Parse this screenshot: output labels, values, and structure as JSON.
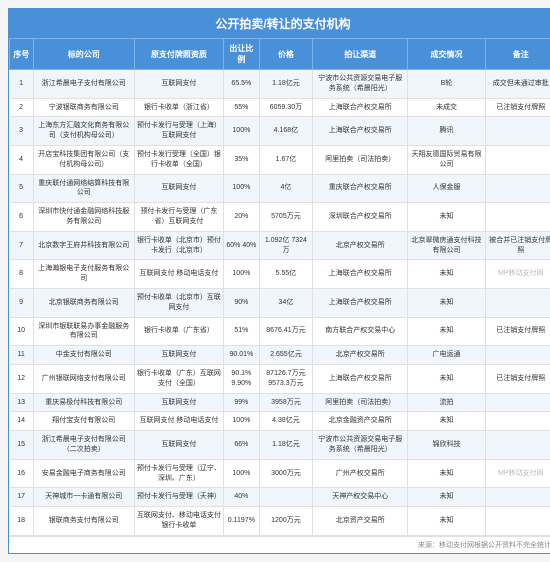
{
  "title": "公开拍卖/转让的支付机构",
  "headers": [
    "序号",
    "标的公司",
    "原支付牌照资质",
    "出让比例",
    "价格",
    "拍让渠道",
    "成交情况",
    "备注"
  ],
  "col_classes": [
    "c0",
    "c1",
    "c2",
    "c3",
    "c4",
    "c5",
    "c6",
    "c7"
  ],
  "rows": [
    {
      "n": "1",
      "c": "浙江希晨电子支付有限公司",
      "q": "互联网支付",
      "r": "65.5%",
      "p": "1.18亿元",
      "ch": "宁波市公共资源交易电子服务系统（希晨阳光）",
      "s": "B轮",
      "nt": "成交但未通过审批",
      "wm": ""
    },
    {
      "n": "2",
      "c": "宁波银联商务有限公司",
      "q": "银行卡收单（浙江省）",
      "r": "55%",
      "p": "6059.30万",
      "ch": "上海联合产权交易所",
      "s": "未成交",
      "nt": "已注销支付牌照",
      "wm": ""
    },
    {
      "n": "3",
      "c": "上海东方汇融文化商务有限公司（支付机构母公司）",
      "q": "预付卡发行与受理（上海）互联网支付",
      "r": "100%",
      "p": "4.168亿",
      "ch": "上海联合产权交易所",
      "s": "腾讯",
      "nt": "",
      "wm": ""
    },
    {
      "n": "4",
      "c": "开店宝科技集团有限公司（支付机构母公司）",
      "q": "预付卡发行受理（全国）银行卡收单（全国）",
      "r": "35%",
      "p": "1.67亿",
      "ch": "阿里拍卖（司法拍卖）",
      "s": "天翔友德国际贸易有限公司",
      "nt": "",
      "wm": ""
    },
    {
      "n": "5",
      "c": "重庆联付通网络结算科技有限公司",
      "q": "互联网支付",
      "r": "100%",
      "p": "4亿",
      "ch": "重庆联合产权交易所",
      "s": "人保金服",
      "nt": "",
      "wm": ""
    },
    {
      "n": "6",
      "c": "深圳市快付通金融网络科技服务有限公司",
      "q": "预付卡发行与受理（广东省）互联网支付",
      "r": "20%",
      "p": "5705万元",
      "ch": "深圳联合产权交易所",
      "s": "未知",
      "nt": "",
      "wm": ""
    },
    {
      "n": "7",
      "c": "北京数字王府井科技有限公司",
      "q": "银行卡收单（北京市）预付卡发行（北京市）",
      "r": "60% 40%",
      "p": "1.092亿 7324万",
      "ch": "北京产权交易所",
      "s": "北京翠微房通支付科技有限公司",
      "nt": "被合并已注销支付牌照",
      "wm": ""
    },
    {
      "n": "8",
      "c": "上海瀚银电子支付服务有限公司",
      "q": "互联网支付 移动电话支付",
      "r": "100%",
      "p": "5.55亿",
      "ch": "上海联合产权交易所",
      "s": "未知",
      "nt": "",
      "wm": "MP移动支付网"
    },
    {
      "n": "9",
      "c": "北京银联商务有限公司",
      "q": "预付卡收单（北京市）互联网支付",
      "r": "90%",
      "p": "34亿",
      "ch": "上海联合产权交易所",
      "s": "未知",
      "nt": "",
      "wm": ""
    },
    {
      "n": "10",
      "c": "深圳市银联联易办事金融服务有限公司",
      "q": "银行卡收单（广东省）",
      "r": "51%",
      "p": "8676.41万元",
      "ch": "南方联合产权交易中心",
      "s": "未知",
      "nt": "已注销支付牌照",
      "wm": ""
    },
    {
      "n": "11",
      "c": "中金支付有限公司",
      "q": "互联网支付",
      "r": "90.01%",
      "p": "2.655亿元",
      "ch": "北京产权交易所",
      "s": "广电运通",
      "nt": "",
      "wm": ""
    },
    {
      "n": "12",
      "c": "广州银联网络支付有限公司",
      "q": "银行卡收单（广东）互联网支付（全国）",
      "r": "90.1% 9.90%",
      "p": "87126.7万元 9573.3万元",
      "ch": "上海联合产权交易所",
      "s": "未知",
      "nt": "已注销支付牌照",
      "wm": ""
    },
    {
      "n": "13",
      "c": "重庆易极付科技有限公司",
      "q": "互联网支付",
      "r": "99%",
      "p": "3958万元",
      "ch": "阿里拍卖（司法拍卖）",
      "s": "流拍",
      "nt": "",
      "wm": ""
    },
    {
      "n": "14",
      "c": "翔付宝支付有限公司",
      "q": "互联网支付 移动电话支付",
      "r": "100%",
      "p": "4.38亿元",
      "ch": "北京金融资产交易所",
      "s": "未知",
      "nt": "",
      "wm": ""
    },
    {
      "n": "15",
      "c": "浙江希晨电子支付有限公司（二次拍卖）",
      "q": "互联网支付",
      "r": "66%",
      "p": "1.18亿元",
      "ch": "宁波市公共资源交易电子服务系统（希晨阳光）",
      "s": "锦欣科技",
      "nt": "",
      "wm": ""
    },
    {
      "n": "16",
      "c": "安易金融电子商务有限公司",
      "q": "预付卡发行与受理（辽宁、深圳、广东）",
      "r": "100%",
      "p": "3000万元",
      "ch": "广州产权交易所",
      "s": "未知",
      "nt": "",
      "wm": "MP移动支付网"
    },
    {
      "n": "17",
      "c": "天神城市一卡通有限公司",
      "q": "预付卡发行与受理（天神）",
      "r": "40%",
      "p": "",
      "ch": "天神产权交易中心",
      "s": "未知",
      "nt": "",
      "wm": ""
    },
    {
      "n": "18",
      "c": "银联商务支付有限公司",
      "q": "互联网支付、移动电话支付 银行卡收单",
      "r": "0.1197%",
      "p": "1200万元",
      "ch": "北京资产交易所",
      "s": "未知",
      "nt": "",
      "wm": ""
    }
  ],
  "source": "来源：移动支付网根据公开资料不完全统计",
  "colors": {
    "header_bg": "#4a90d9",
    "header_fg": "#ffffff",
    "row_odd": "#f0f6fc",
    "row_even": "#ffffff",
    "border": "#e0e0e0",
    "text": "#333333"
  }
}
